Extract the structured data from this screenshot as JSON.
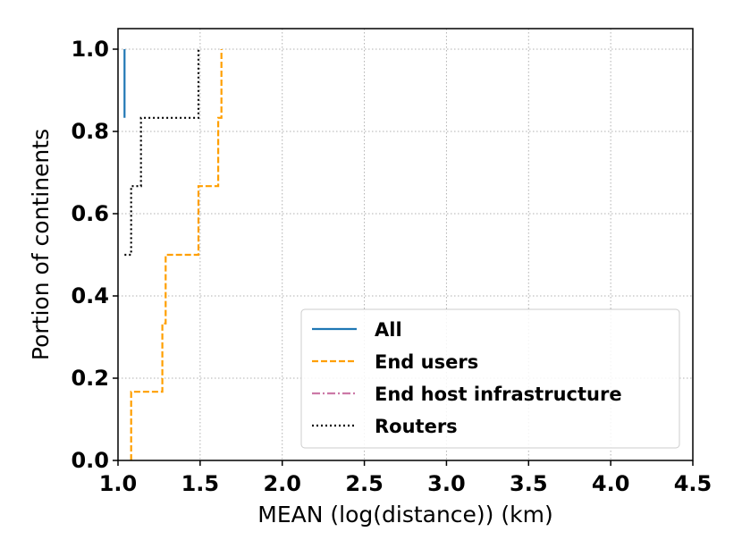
{
  "chart_data": {
    "type": "line",
    "chart_style": "step-cdf",
    "xlabel": "MEAN (log(distance)) (km)",
    "ylabel": "Portion of continents",
    "xlim": [
      1.0,
      4.5
    ],
    "ylim": [
      0.0,
      1.05
    ],
    "xticks": [
      "1.0",
      "1.5",
      "2.0",
      "2.5",
      "3.0",
      "3.5",
      "4.0",
      "4.5"
    ],
    "yticks": [
      "0.0",
      "0.2",
      "0.4",
      "0.6",
      "0.8",
      "1.0"
    ],
    "grid": true,
    "legend_position": "lower-right",
    "series": [
      {
        "name": "All",
        "color": "#1f77b4",
        "dash": "solid",
        "x": [
          1.04,
          1.04,
          1.04
        ],
        "y": [
          0.833,
          0.833,
          1.0
        ]
      },
      {
        "name": "End users",
        "color": "#ff9f00",
        "dash": "dashed",
        "x": [
          1.08,
          1.08,
          1.27,
          1.27,
          1.29,
          1.29,
          1.49,
          1.49,
          1.61,
          1.61,
          1.63,
          1.63
        ],
        "y": [
          0.0,
          0.167,
          0.167,
          0.333,
          0.333,
          0.5,
          0.5,
          0.667,
          0.667,
          0.833,
          0.833,
          1.0
        ]
      },
      {
        "name": "End host infrastructure",
        "color": "#cc79a7",
        "dash": "dashdot",
        "x": [],
        "y": []
      },
      {
        "name": "Routers",
        "color": "#000000",
        "dash": "dotted",
        "x": [
          1.04,
          1.08,
          1.08,
          1.14,
          1.14,
          1.49,
          1.49
        ],
        "y": [
          0.5,
          0.5,
          0.667,
          0.667,
          0.833,
          0.833,
          1.0
        ]
      }
    ]
  }
}
